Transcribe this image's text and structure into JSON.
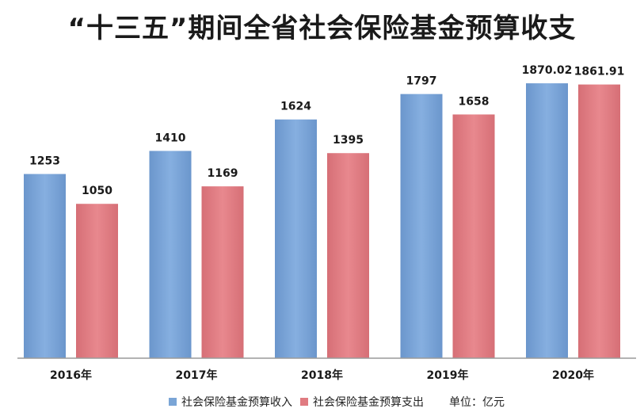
{
  "chart_data": {
    "type": "bar",
    "title": "“十三五”期间全省社会保险基金预算收支",
    "categories": [
      "2016年",
      "2017年",
      "2018年",
      "2019年",
      "2020年"
    ],
    "series": [
      {
        "name": "社会保险基金预算收入",
        "values": [
          1253,
          1410,
          1624,
          1797,
          1870.02
        ],
        "labels": [
          "1253",
          "1410",
          "1624",
          "1797",
          "1870.02"
        ],
        "color": "#7aa5d6"
      },
      {
        "name": "社会保险基金预算支出",
        "values": [
          1050,
          1169,
          1395,
          1658,
          1861.91
        ],
        "labels": [
          "1050",
          "1169",
          "1395",
          "1658",
          "1861.91"
        ],
        "color": "#e07b81"
      }
    ],
    "unit": "单位：亿元",
    "ylim": [
      0,
      2000
    ],
    "grid": false,
    "legend_position": "bottom"
  }
}
